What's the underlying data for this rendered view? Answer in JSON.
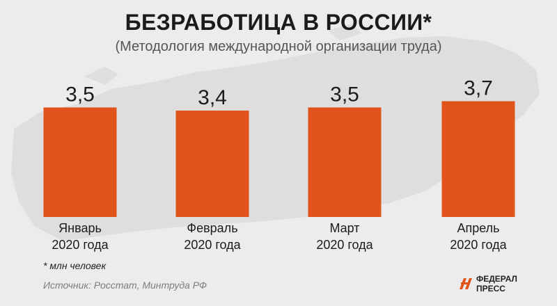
{
  "header": {
    "title": "БЕЗРАБОТИЦА В РОССИИ*",
    "subtitle": "(Методология международной организации труда)"
  },
  "chart_data": {
    "type": "bar",
    "title": "БЕЗРАБОТИЦА В РОССИИ*",
    "subtitle": "(Методология международной организации труда)",
    "categories": [
      [
        "Январь",
        "2020 года"
      ],
      [
        "Февраль",
        "2020 года"
      ],
      [
        "Март",
        "2020 года"
      ],
      [
        "Апрель",
        "2020 года"
      ]
    ],
    "values": [
      3.5,
      3.4,
      3.5,
      3.7
    ],
    "value_labels": [
      "3,5",
      "3,4",
      "3,5",
      "3,7"
    ],
    "unit": "* млн человек",
    "xlabel": "",
    "ylabel": "",
    "grid": false,
    "bar_color": "#e0531a"
  },
  "footer": {
    "note": "* млн человек",
    "source": "Источник: Росстат, Минтруда РФ"
  },
  "logo": {
    "line1": "ФЕДЕРАЛ",
    "line2": "ПРЕСС",
    "icon": "fp-logo-icon",
    "color": "#e0531a"
  }
}
